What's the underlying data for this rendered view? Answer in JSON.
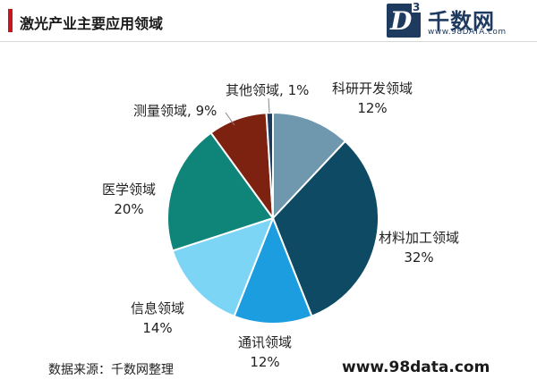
{
  "header": {
    "title": "激光产业主要应用领域"
  },
  "logo": {
    "letter": "D",
    "superscript": "3",
    "name": "千数网",
    "url": "www.98DATA.com"
  },
  "chart_data": {
    "type": "pie",
    "slices": [
      {
        "label": "科研开发领域",
        "value": 12,
        "display": "12%",
        "color": "#6f98ae"
      },
      {
        "label": "材料加工领域",
        "value": 32,
        "display": "32%",
        "color": "#0e4a63"
      },
      {
        "label": "通讯领域",
        "value": 12,
        "display": "12%",
        "color": "#1b9de0"
      },
      {
        "label": "信息领域",
        "value": 14,
        "display": "14%",
        "color": "#7dd5f6"
      },
      {
        "label": "医学领域",
        "value": 20,
        "display": "20%",
        "color": "#0f8478"
      },
      {
        "label": "测量领域",
        "value": 9,
        "display": "9%",
        "color": "#7d2110"
      },
      {
        "label": "其他领域",
        "value": 1,
        "display": "1%",
        "color": "#1f3a5f"
      }
    ]
  },
  "footer": {
    "source": "数据来源：千数网整理",
    "website": "www.98data.com"
  }
}
